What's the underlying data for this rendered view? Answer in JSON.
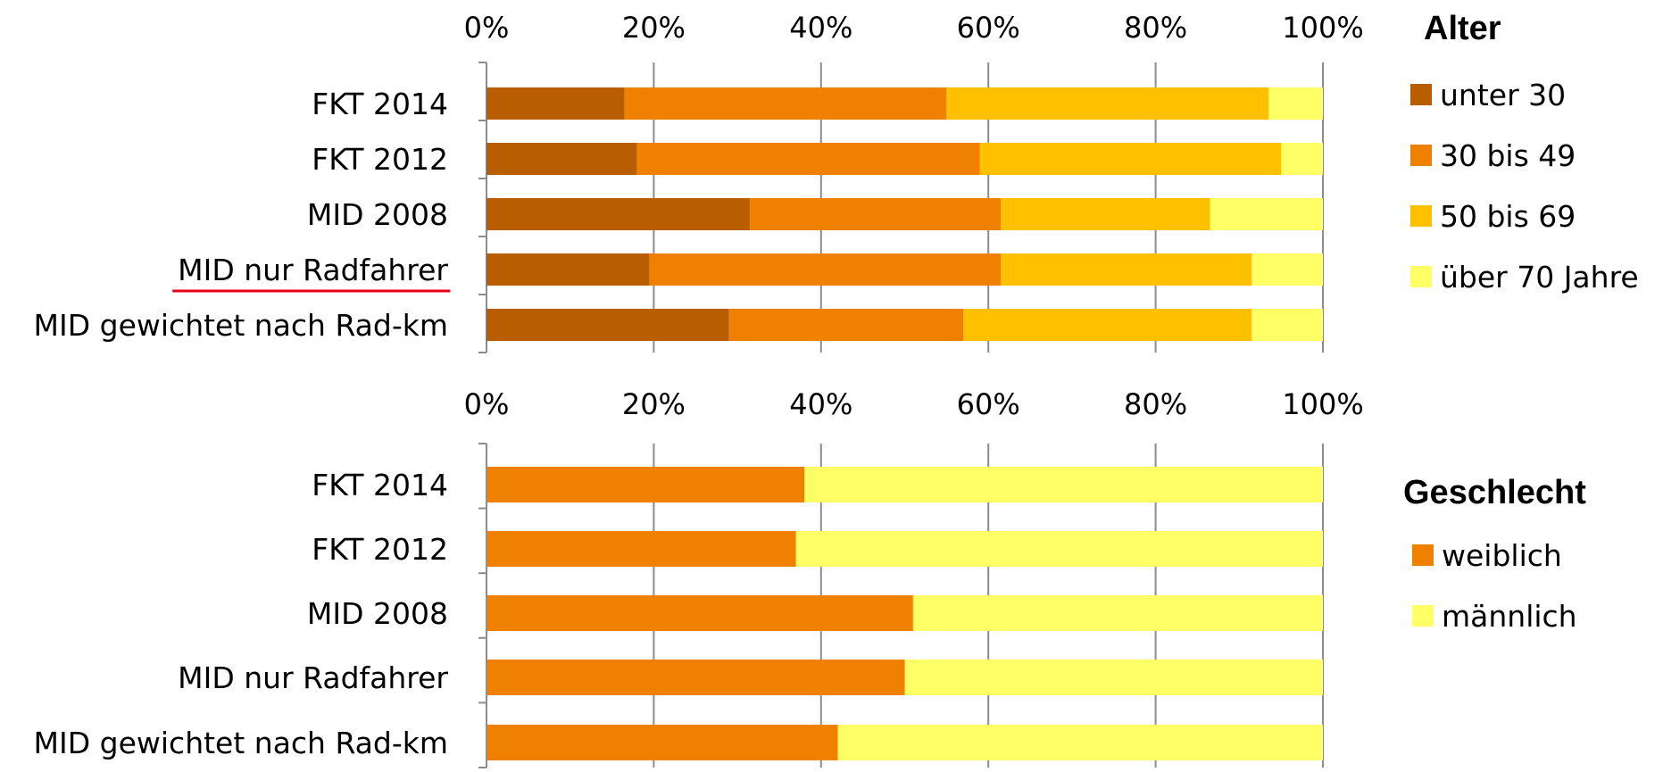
{
  "chart_data": [
    {
      "type": "bar",
      "orientation": "horizontal",
      "stacked": true,
      "percent_axis": true,
      "xlim": [
        0,
        100
      ],
      "x_ticks": [
        "0%",
        "20%",
        "40%",
        "60%",
        "80%",
        "100%"
      ],
      "tick_position": "top",
      "categories": [
        "FKT 2014",
        "FKT 2012",
        "MID 2008",
        "MID nur Radfahrer",
        "MID gewichtet nach Rad-km"
      ],
      "highlighted_category": "MID nur Radfahrer",
      "highlight_color": "#e8001c",
      "legend_title": "Alter",
      "legend_position": "right",
      "grid": true,
      "series": [
        {
          "name": "unter 30",
          "color": "#b85e00",
          "values": [
            16.5,
            18,
            31.5,
            19.5,
            29
          ]
        },
        {
          "name": "30 bis 49",
          "color": "#f08000",
          "values": [
            38.5,
            41,
            30,
            42,
            28
          ]
        },
        {
          "name": "50 bis 69",
          "color": "#ffc000",
          "values": [
            38.5,
            36,
            25,
            30,
            34.5
          ]
        },
        {
          "name": "über 70 Jahre",
          "color": "#ffff66",
          "values": [
            6.5,
            5,
            13.5,
            8.5,
            8.5
          ]
        }
      ]
    },
    {
      "type": "bar",
      "orientation": "horizontal",
      "stacked": true,
      "percent_axis": true,
      "xlim": [
        0,
        100
      ],
      "x_ticks": [
        "0%",
        "20%",
        "40%",
        "60%",
        "80%",
        "100%"
      ],
      "tick_position": "top",
      "categories": [
        "FKT 2014",
        "FKT 2012",
        "MID 2008",
        "MID nur Radfahrer",
        "MID gewichtet nach Rad-km"
      ],
      "legend_title": "Geschlecht",
      "legend_position": "right",
      "grid": true,
      "series": [
        {
          "name": "weiblich",
          "color": "#f08000",
          "values": [
            38,
            37,
            51,
            50,
            42
          ]
        },
        {
          "name": "männlich",
          "color": "#ffff66",
          "values": [
            62,
            63,
            49,
            50,
            58
          ]
        }
      ]
    }
  ]
}
